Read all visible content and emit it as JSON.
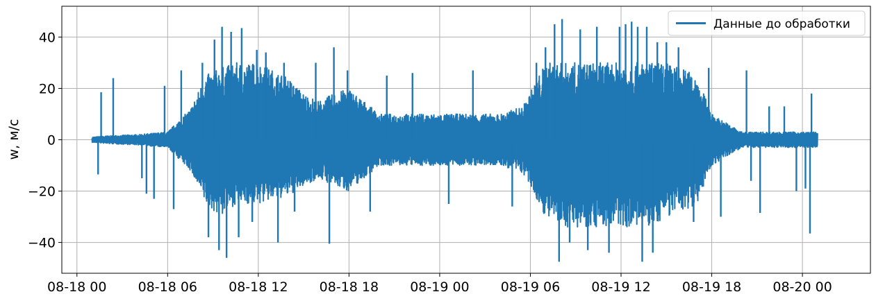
{
  "chart_data": {
    "type": "line",
    "title": "",
    "xlabel": "",
    "ylabel": "w, м/с",
    "ylim": [
      -52,
      52
    ],
    "xlim": [
      "2018-08-17T23:00",
      "2018-08-20T04:30"
    ],
    "x_range": [
      "2018-08-18T00:00",
      "2018-08-20T00:00"
    ],
    "x_ticks": [
      "08-18 00",
      "08-18 06",
      "08-18 12",
      "08-18 18",
      "08-19 00",
      "08-19 06",
      "08-19 12",
      "08-19 18",
      "08-20 00"
    ],
    "y_ticks": [
      -40,
      -20,
      0,
      20,
      40
    ],
    "grid": true,
    "legend_position": "top-right",
    "series": [
      {
        "name": "Данные до обработки",
        "color": "#1f77b4",
        "envelope": {
          "x_hours": [
            1,
            2,
            4,
            6,
            7.5,
            8.5,
            9.5,
            10.5,
            12,
            14,
            15,
            16,
            17,
            18,
            20,
            22,
            24,
            26,
            28,
            29.5,
            31,
            32,
            33,
            34,
            35,
            36,
            37,
            38,
            39,
            40,
            41,
            42,
            44,
            46,
            48,
            49
          ],
          "upper": [
            1,
            1.5,
            2,
            3,
            12,
            25,
            28,
            30,
            30,
            24,
            18,
            15,
            18,
            20,
            10,
            10,
            10,
            10,
            10,
            13,
            30,
            30,
            30,
            30,
            30,
            30,
            30,
            30,
            30,
            28,
            25,
            10,
            3,
            3,
            3,
            3
          ],
          "lower": [
            -1,
            -1.5,
            -2,
            -3,
            -12,
            -25,
            -30,
            -25,
            -25,
            -22,
            -18,
            -15,
            -18,
            -20,
            -10,
            -10,
            -10,
            -10,
            -10,
            -13,
            -30,
            -34,
            -34,
            -34,
            -34,
            -34,
            -34,
            -34,
            -30,
            -28,
            -25,
            -10,
            -3,
            -3,
            -3,
            -3
          ]
        },
        "spikes": [
          {
            "x_hours": 1.6,
            "y": 18.5
          },
          {
            "x_hours": 2.4,
            "y": 24.0
          },
          {
            "x_hours": 1.4,
            "y": -13.5
          },
          {
            "x_hours": 4.3,
            "y": -15.0
          },
          {
            "x_hours": 4.6,
            "y": -21.0
          },
          {
            "x_hours": 5.1,
            "y": -23.0
          },
          {
            "x_hours": 5.8,
            "y": 21.0
          },
          {
            "x_hours": 6.4,
            "y": -27.0
          },
          {
            "x_hours": 6.9,
            "y": 27.0
          },
          {
            "x_hours": 8.3,
            "y": 30.0
          },
          {
            "x_hours": 8.7,
            "y": -38.0
          },
          {
            "x_hours": 9.1,
            "y": 39.0
          },
          {
            "x_hours": 9.4,
            "y": -43.0
          },
          {
            "x_hours": 9.6,
            "y": 44.0
          },
          {
            "x_hours": 9.9,
            "y": -46.0
          },
          {
            "x_hours": 10.2,
            "y": 42.0
          },
          {
            "x_hours": 10.7,
            "y": -38.0
          },
          {
            "x_hours": 10.9,
            "y": 43.5
          },
          {
            "x_hours": 11.6,
            "y": -32.0
          },
          {
            "x_hours": 11.9,
            "y": 35.0
          },
          {
            "x_hours": 12.5,
            "y": 34.0
          },
          {
            "x_hours": 13.3,
            "y": -40.0
          },
          {
            "x_hours": 13.7,
            "y": 30.0
          },
          {
            "x_hours": 14.4,
            "y": -28.0
          },
          {
            "x_hours": 15.8,
            "y": 30.0
          },
          {
            "x_hours": 16.7,
            "y": -40.5
          },
          {
            "x_hours": 17.0,
            "y": 36.0
          },
          {
            "x_hours": 17.9,
            "y": 27.0
          },
          {
            "x_hours": 19.4,
            "y": -28.0
          },
          {
            "x_hours": 20.5,
            "y": 25.0
          },
          {
            "x_hours": 22.2,
            "y": 26.0
          },
          {
            "x_hours": 24.6,
            "y": -25.0
          },
          {
            "x_hours": 26.2,
            "y": 27.0
          },
          {
            "x_hours": 28.8,
            "y": -26.0
          },
          {
            "x_hours": 30.4,
            "y": 30.0
          },
          {
            "x_hours": 31.0,
            "y": 36.0
          },
          {
            "x_hours": 31.6,
            "y": 45.0
          },
          {
            "x_hours": 31.9,
            "y": -47.5
          },
          {
            "x_hours": 32.1,
            "y": 47.0
          },
          {
            "x_hours": 32.6,
            "y": -40.0
          },
          {
            "x_hours": 33.3,
            "y": 43.0
          },
          {
            "x_hours": 33.8,
            "y": -43.0
          },
          {
            "x_hours": 34.4,
            "y": 44.0
          },
          {
            "x_hours": 35.2,
            "y": -44.0
          },
          {
            "x_hours": 35.9,
            "y": 44.0
          },
          {
            "x_hours": 36.3,
            "y": 45.0
          },
          {
            "x_hours": 36.7,
            "y": 46.0
          },
          {
            "x_hours": 37.1,
            "y": 44.0
          },
          {
            "x_hours": 37.4,
            "y": -47.5
          },
          {
            "x_hours": 37.7,
            "y": 44.0
          },
          {
            "x_hours": 38.1,
            "y": -44.0
          },
          {
            "x_hours": 38.4,
            "y": 38.0
          },
          {
            "x_hours": 39.0,
            "y": 38.0
          },
          {
            "x_hours": 39.8,
            "y": 36.0
          },
          {
            "x_hours": 40.8,
            "y": -32.0
          },
          {
            "x_hours": 41.8,
            "y": 28.0
          },
          {
            "x_hours": 42.6,
            "y": -30.0
          },
          {
            "x_hours": 44.3,
            "y": 27.0
          },
          {
            "x_hours": 44.6,
            "y": -16.0
          },
          {
            "x_hours": 45.2,
            "y": -28.5
          },
          {
            "x_hours": 45.8,
            "y": 13.0
          },
          {
            "x_hours": 46.8,
            "y": 13.0
          },
          {
            "x_hours": 47.6,
            "y": -20.0
          },
          {
            "x_hours": 48.2,
            "y": -19.0
          },
          {
            "x_hours": 48.5,
            "y": -36.5
          },
          {
            "x_hours": 48.6,
            "y": 18.0
          }
        ]
      }
    ]
  }
}
